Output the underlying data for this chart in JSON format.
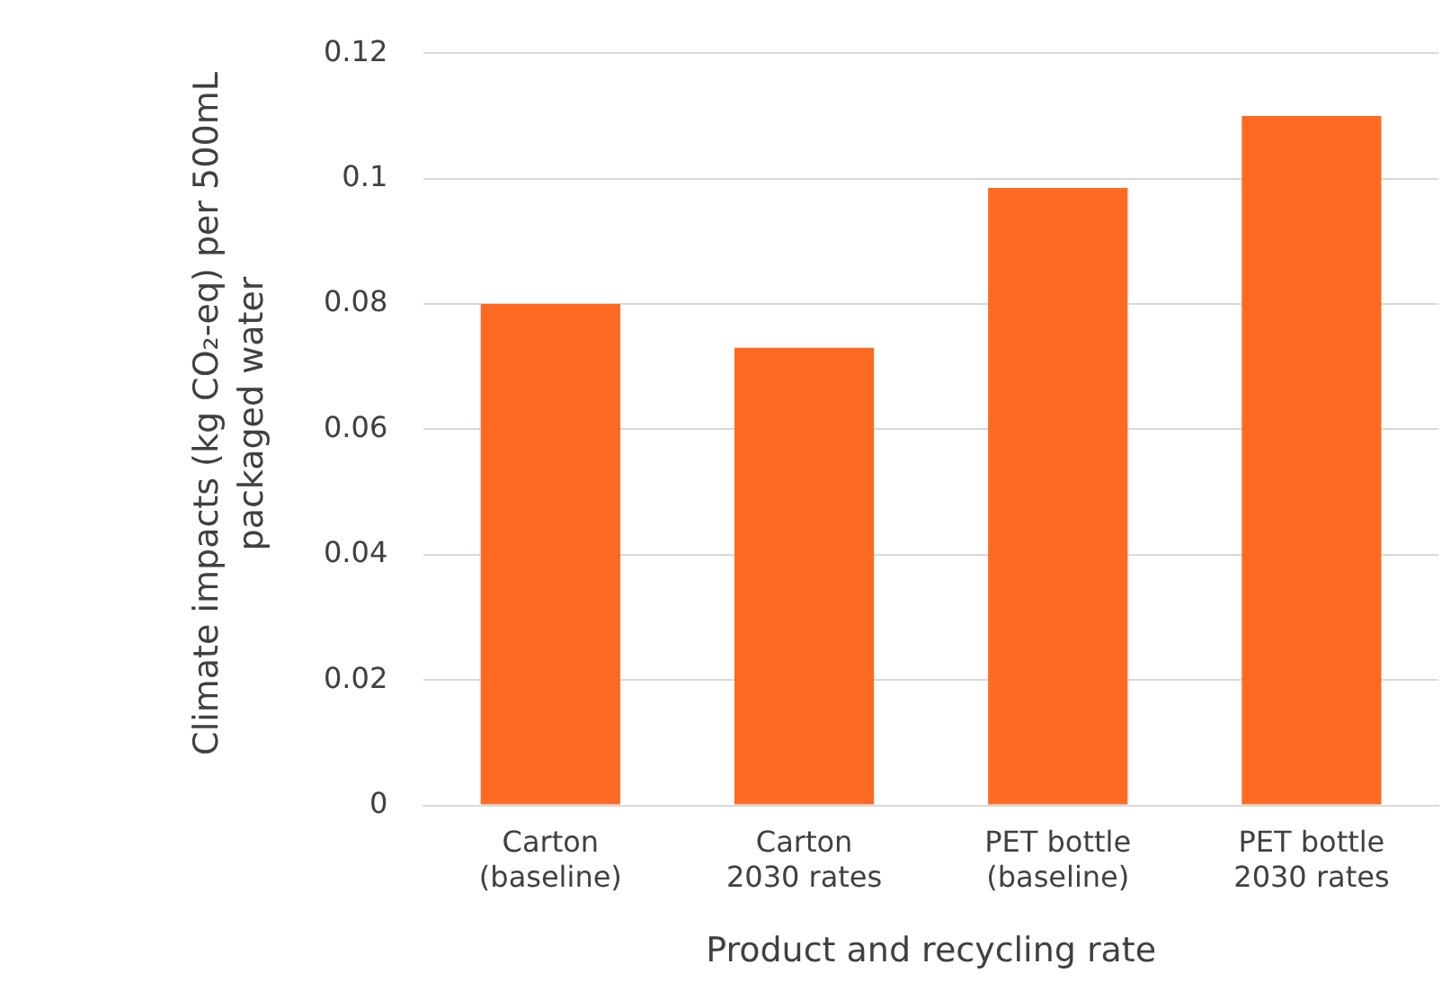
{
  "chart_data": {
    "type": "bar",
    "xlabel": "Product and recycling rate",
    "ylabel": "Climate impacts (kg CO₂-eq) per 500mL packaged water",
    "categories": [
      "Carton\n(baseline)",
      "Carton\n2030 rates",
      "PET bottle\n(baseline)",
      "PET bottle\n2030 rates"
    ],
    "values": [
      0.08,
      0.073,
      0.0985,
      0.11
    ],
    "color": "#ff6a22",
    "ylim": [
      0,
      0.12
    ],
    "yticks": [
      0,
      0.02,
      0.04,
      0.06,
      0.08,
      0.1,
      0.12
    ],
    "grid": "y",
    "legend": false
  }
}
